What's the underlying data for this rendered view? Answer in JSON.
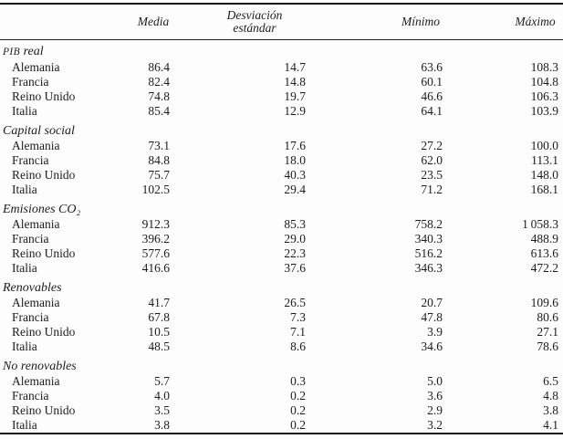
{
  "table": {
    "title_semantic": "summary-statistics-table",
    "header": {
      "media": "Media",
      "std_line1": "Desviación",
      "std_line2": "estándar",
      "minimo": "Mínimo",
      "maximo": "Máximo"
    },
    "column_keys": [
      "media",
      "desviacion-estandar",
      "minimo",
      "maximo"
    ],
    "text_color": "#1c1c1c",
    "rule_color": "#111111",
    "groups": [
      {
        "label": "PIB real",
        "smallcaps_chars": 3,
        "rows": [
          {
            "country": "Alemania",
            "values": [
              "86.4",
              "14.7",
              "63.6",
              "108.3"
            ]
          },
          {
            "country": "Francia",
            "values": [
              "82.4",
              "14.8",
              "60.1",
              "104.8"
            ]
          },
          {
            "country": "Reino Unido",
            "values": [
              "74.8",
              "19.7",
              "46.6",
              "106.3"
            ]
          },
          {
            "country": "Italia",
            "values": [
              "85.4",
              "12.9",
              "64.1",
              "103.9"
            ]
          }
        ]
      },
      {
        "label": "Capital social",
        "rows": [
          {
            "country": "Alemania",
            "values": [
              "73.1",
              "17.6",
              "27.2",
              "100.0"
            ]
          },
          {
            "country": "Francia",
            "values": [
              "84.8",
              "18.0",
              "62.0",
              "113.1"
            ]
          },
          {
            "country": "Reino Unido",
            "values": [
              "75.7",
              "40.3",
              "23.5",
              "148.0"
            ]
          },
          {
            "country": "Italia",
            "values": [
              "102.5",
              "29.4",
              "71.2",
              "168.1"
            ]
          }
        ]
      },
      {
        "label": "Emisiones CO₂",
        "rows": [
          {
            "country": "Alemania",
            "values": [
              "912.3",
              "85.3",
              "758.2",
              "1 058.3"
            ]
          },
          {
            "country": "Francia",
            "values": [
              "396.2",
              "29.0",
              "340.3",
              "488.9"
            ]
          },
          {
            "country": "Reino Unido",
            "values": [
              "577.6",
              "22.3",
              "516.2",
              "613.6"
            ]
          },
          {
            "country": "Italia",
            "values": [
              "416.6",
              "37.6",
              "346.3",
              "472.2"
            ]
          }
        ]
      },
      {
        "label": "Renovables",
        "rows": [
          {
            "country": "Alemania",
            "values": [
              "41.7",
              "26.5",
              "20.7",
              "109.6"
            ]
          },
          {
            "country": "Francia",
            "values": [
              "67.8",
              "7.3",
              "47.8",
              "80.6"
            ]
          },
          {
            "country": "Reino Unido",
            "values": [
              "10.5",
              "7.1",
              "3.9",
              "27.1"
            ]
          },
          {
            "country": "Italia",
            "values": [
              "48.5",
              "8.6",
              "34.6",
              "78.6"
            ]
          }
        ]
      },
      {
        "label": "No renovables",
        "rows": [
          {
            "country": "Alemania",
            "values": [
              "5.7",
              "0.3",
              "5.0",
              "6.5"
            ]
          },
          {
            "country": "Francia",
            "values": [
              "4.0",
              "0.2",
              "3.6",
              "4.8"
            ]
          },
          {
            "country": "Reino Unido",
            "values": [
              "3.5",
              "0.2",
              "2.9",
              "3.8"
            ]
          },
          {
            "country": "Italia",
            "values": [
              "3.8",
              "0.2",
              "3.2",
              "4.1"
            ]
          }
        ]
      }
    ]
  }
}
